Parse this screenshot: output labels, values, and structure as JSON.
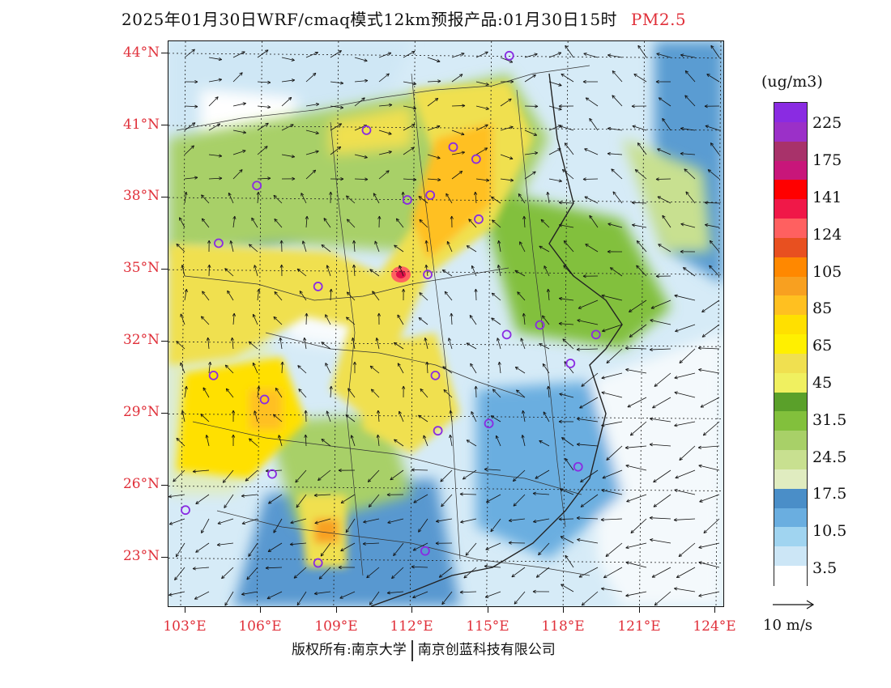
{
  "title": {
    "main": "2025年01月30日WRF/cmaq模式12km预报产品:01月30日15时",
    "species": "PM2.5"
  },
  "axes": {
    "lat_labels": [
      "44°N",
      "41°N",
      "38°N",
      "35°N",
      "32°N",
      "29°N",
      "26°N",
      "23°N"
    ],
    "lat_values": [
      44,
      41,
      38,
      35,
      32,
      29,
      26,
      23
    ],
    "lon_labels": [
      "103°E",
      "106°E",
      "109°E",
      "112°E",
      "115°E",
      "118°E",
      "121°E",
      "124°E"
    ],
    "lon_values": [
      103,
      106,
      109,
      112,
      115,
      118,
      121,
      124
    ],
    "lon_range": [
      103,
      124
    ],
    "lat_range": [
      21,
      44.5
    ]
  },
  "colorbar": {
    "units": "(ug/m3)",
    "labels": [
      "225",
      "175",
      "141",
      "124",
      "105",
      "85",
      "65",
      "45",
      "31.5",
      "24.5",
      "17.5",
      "10.5",
      "3.5"
    ],
    "colors_top_to_bottom": [
      "#8a2be2",
      "#9b30c8",
      "#a8326a",
      "#c8167a",
      "#ff0000",
      "#f01848",
      "#ff6060",
      "#e85020",
      "#ff8800",
      "#f8a020",
      "#ffc020",
      "#ffe000",
      "#fff000",
      "#f0e050",
      "#f0f060",
      "#5aa02a",
      "#82c03c",
      "#a8d068",
      "#c8e090",
      "#e0ecc0",
      "#4a8ec8",
      "#6aaee0",
      "#a0d4f0",
      "#cce6f6",
      "#ffffff"
    ]
  },
  "reference_vector": {
    "label": "10 m/s"
  },
  "cities": [
    [
      115.7,
      43.9
    ],
    [
      110.1,
      40.8
    ],
    [
      113.5,
      40.1
    ],
    [
      114.4,
      39.6
    ],
    [
      105.8,
      38.5
    ],
    [
      111.7,
      37.9
    ],
    [
      112.6,
      38.1
    ],
    [
      114.5,
      37.1
    ],
    [
      104.3,
      36.1
    ],
    [
      108.2,
      34.3
    ],
    [
      112.5,
      34.8
    ],
    [
      115.6,
      32.3
    ],
    [
      116.9,
      32.7
    ],
    [
      119.1,
      32.3
    ],
    [
      118.1,
      31.1
    ],
    [
      112.8,
      30.6
    ],
    [
      104.1,
      30.6
    ],
    [
      106.1,
      29.6
    ],
    [
      114.9,
      28.6
    ],
    [
      112.9,
      28.3
    ],
    [
      118.4,
      26.8
    ],
    [
      106.4,
      26.5
    ],
    [
      103.0,
      25.0
    ],
    [
      108.2,
      22.8
    ],
    [
      112.4,
      23.3
    ]
  ],
  "footer": {
    "copyright": "版权所有:南京大学",
    "company": "南京创蓝科技有限公司"
  },
  "style": {
    "frame_color": "#111111",
    "label_color": "#e0303a",
    "city_marker_color": "#8a2be2"
  }
}
